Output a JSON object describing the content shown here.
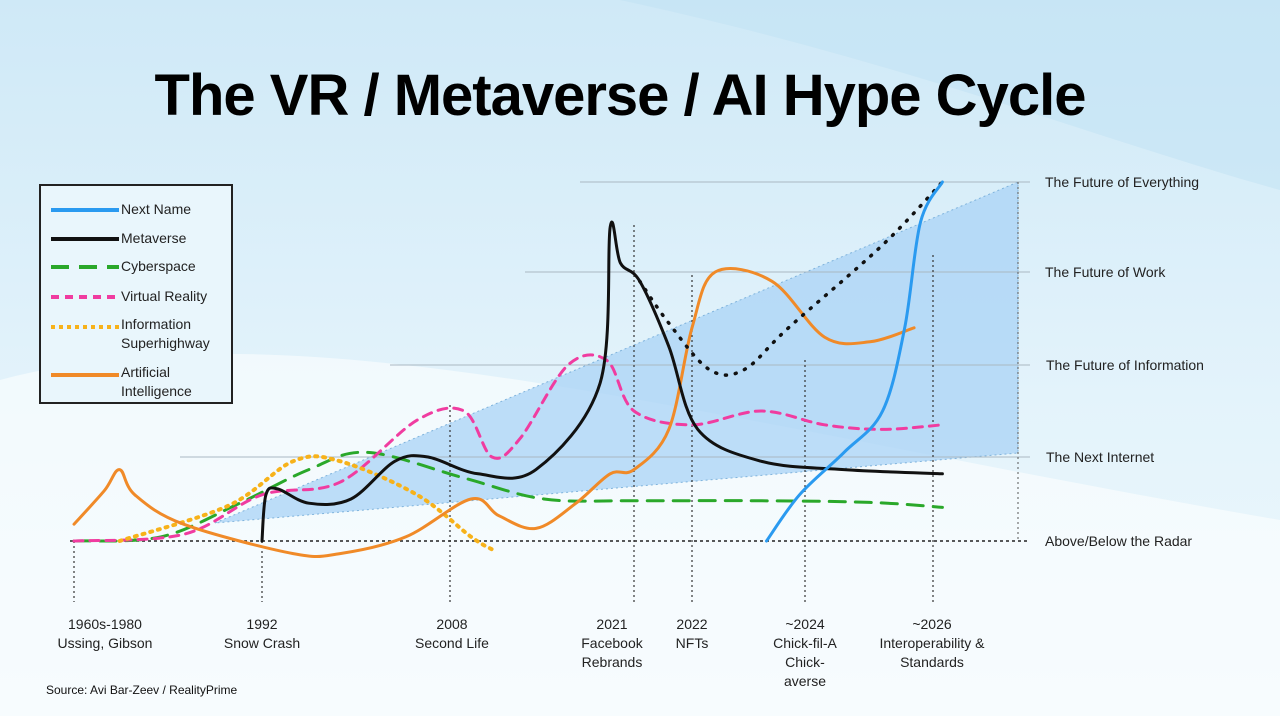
{
  "title": "The VR / Metaverse / AI Hype Cycle",
  "source": "Source: Avi Bar-Zeev / RealityPrime",
  "colors": {
    "next_name": "#2a9af0",
    "metaverse": "#111111",
    "cyberspace": "#2aa82a",
    "virtual_reality": "#f03ca0",
    "information_superhighway": "#f7b21a",
    "artificial_intelligence": "#f08a28",
    "cone": "#a9d3f5"
  },
  "legend": [
    {
      "key": "next_name",
      "label": "Next Name"
    },
    {
      "key": "metaverse",
      "label": "Metaverse"
    },
    {
      "key": "cyberspace",
      "label": "Cyberspace"
    },
    {
      "key": "virtual_reality",
      "label": "Virtual Reality"
    },
    {
      "key": "information_superhighway",
      "label": "Information Superhighway"
    },
    {
      "key": "artificial_intelligence",
      "label": "Artificial Intelligence"
    }
  ],
  "chart_data": {
    "type": "line",
    "title": "The VR / Metaverse / AI Hype Cycle",
    "y_levels": [
      "Above/Below the Radar",
      "The Next Internet",
      "The Future of Information",
      "The Future of Work",
      "The Future of Everything"
    ],
    "milestones": [
      {
        "year": "1960s-1980",
        "text": "Ussing, Gibson"
      },
      {
        "year": "1992",
        "text": "Snow Crash"
      },
      {
        "year": "2008",
        "text": "Second Life"
      },
      {
        "year": "2021",
        "text": "Facebook Rebrands"
      },
      {
        "year": "2022",
        "text": "NFTs"
      },
      {
        "year": "~2024",
        "text": "Chick-fil-A Chick-averse"
      },
      {
        "year": "~2026",
        "text": "Interoperability & Standards"
      }
    ],
    "series": [
      {
        "name": "Next Name",
        "key": "next_name",
        "style": "solid",
        "points": [
          [
            9.3,
            0.0
          ],
          [
            9.9,
            0.55
          ],
          [
            10.6,
            1.05
          ],
          [
            11.2,
            1.5
          ],
          [
            11.55,
            2.4
          ],
          [
            11.8,
            3.55
          ],
          [
            12.2,
            4.0
          ]
        ]
      },
      {
        "name": "Metaverse",
        "key": "metaverse",
        "style": "solid",
        "points": [
          [
            2.0,
            0.0
          ],
          [
            2.05,
            0.55
          ],
          [
            2.2,
            0.62
          ],
          [
            2.6,
            0.45
          ],
          [
            3.1,
            0.5
          ],
          [
            3.5,
            0.95
          ],
          [
            3.8,
            1.0
          ],
          [
            4.4,
            0.8
          ],
          [
            5.2,
            0.85
          ],
          [
            6.0,
            1.8
          ],
          [
            6.3,
            3.5
          ],
          [
            6.6,
            3.1
          ],
          [
            7.1,
            2.9
          ],
          [
            7.6,
            2.2
          ],
          [
            8.1,
            1.3
          ],
          [
            9.2,
            0.95
          ],
          [
            10.6,
            0.85
          ],
          [
            12.2,
            0.8
          ]
        ]
      },
      {
        "name": "Metaverse projection",
        "key": "metaverse",
        "style": "dotted",
        "points": [
          [
            7.1,
            2.9
          ],
          [
            7.6,
            2.45
          ],
          [
            8.3,
            1.95
          ],
          [
            8.9,
            1.95
          ],
          [
            9.7,
            2.4
          ],
          [
            11.2,
            3.3
          ],
          [
            12.2,
            4.0
          ]
        ]
      },
      {
        "name": "Cyberspace",
        "key": "cyberspace",
        "style": "dashed",
        "points": [
          [
            0,
            0.0
          ],
          [
            1.1,
            0.05
          ],
          [
            1.8,
            0.45
          ],
          [
            2.6,
            0.85
          ],
          [
            3.25,
            1.05
          ],
          [
            4.2,
            0.75
          ],
          [
            5.3,
            0.5
          ],
          [
            7.0,
            0.48
          ],
          [
            9.0,
            0.48
          ],
          [
            11.0,
            0.46
          ],
          [
            12.2,
            0.4
          ]
        ]
      },
      {
        "name": "Virtual Reality",
        "key": "virtual_reality",
        "style": "dashed",
        "points": [
          [
            0,
            0.0
          ],
          [
            1.3,
            0.08
          ],
          [
            2.0,
            0.55
          ],
          [
            3.0,
            0.7
          ],
          [
            3.7,
            1.4
          ],
          [
            4.2,
            1.5
          ],
          [
            4.6,
            1.0
          ],
          [
            5.0,
            1.2
          ],
          [
            5.6,
            2.0
          ],
          [
            6.2,
            2.05
          ],
          [
            7.0,
            1.5
          ],
          [
            8.0,
            1.35
          ],
          [
            9.2,
            1.5
          ],
          [
            10.3,
            1.35
          ],
          [
            11.2,
            1.3
          ],
          [
            12.2,
            1.35
          ]
        ]
      },
      {
        "name": "Information Superhighway",
        "key": "information_superhighway",
        "style": "dotted",
        "points": [
          [
            0.6,
            0.0
          ],
          [
            1.7,
            0.42
          ],
          [
            2.4,
            0.95
          ],
          [
            3.0,
            0.95
          ],
          [
            3.7,
            0.55
          ],
          [
            4.3,
            0.05
          ],
          [
            4.6,
            -0.1
          ]
        ]
      },
      {
        "name": "Artificial Intelligence",
        "key": "artificial_intelligence",
        "style": "solid",
        "points": [
          [
            0,
            0.2
          ],
          [
            0.4,
            0.6
          ],
          [
            0.6,
            0.85
          ],
          [
            0.8,
            0.55
          ],
          [
            1.3,
            0.2
          ],
          [
            2.4,
            -0.15
          ],
          [
            3.0,
            -0.15
          ],
          [
            3.6,
            0.05
          ],
          [
            4.3,
            0.5
          ],
          [
            4.7,
            0.3
          ],
          [
            5.2,
            0.15
          ],
          [
            5.7,
            0.45
          ],
          [
            6.3,
            0.8
          ],
          [
            7.0,
            0.85
          ],
          [
            7.6,
            1.3
          ],
          [
            8.0,
            2.4
          ],
          [
            8.4,
            3.0
          ],
          [
            9.4,
            2.9
          ],
          [
            10.3,
            2.3
          ],
          [
            11.0,
            2.25
          ],
          [
            11.7,
            2.4
          ]
        ]
      }
    ]
  }
}
